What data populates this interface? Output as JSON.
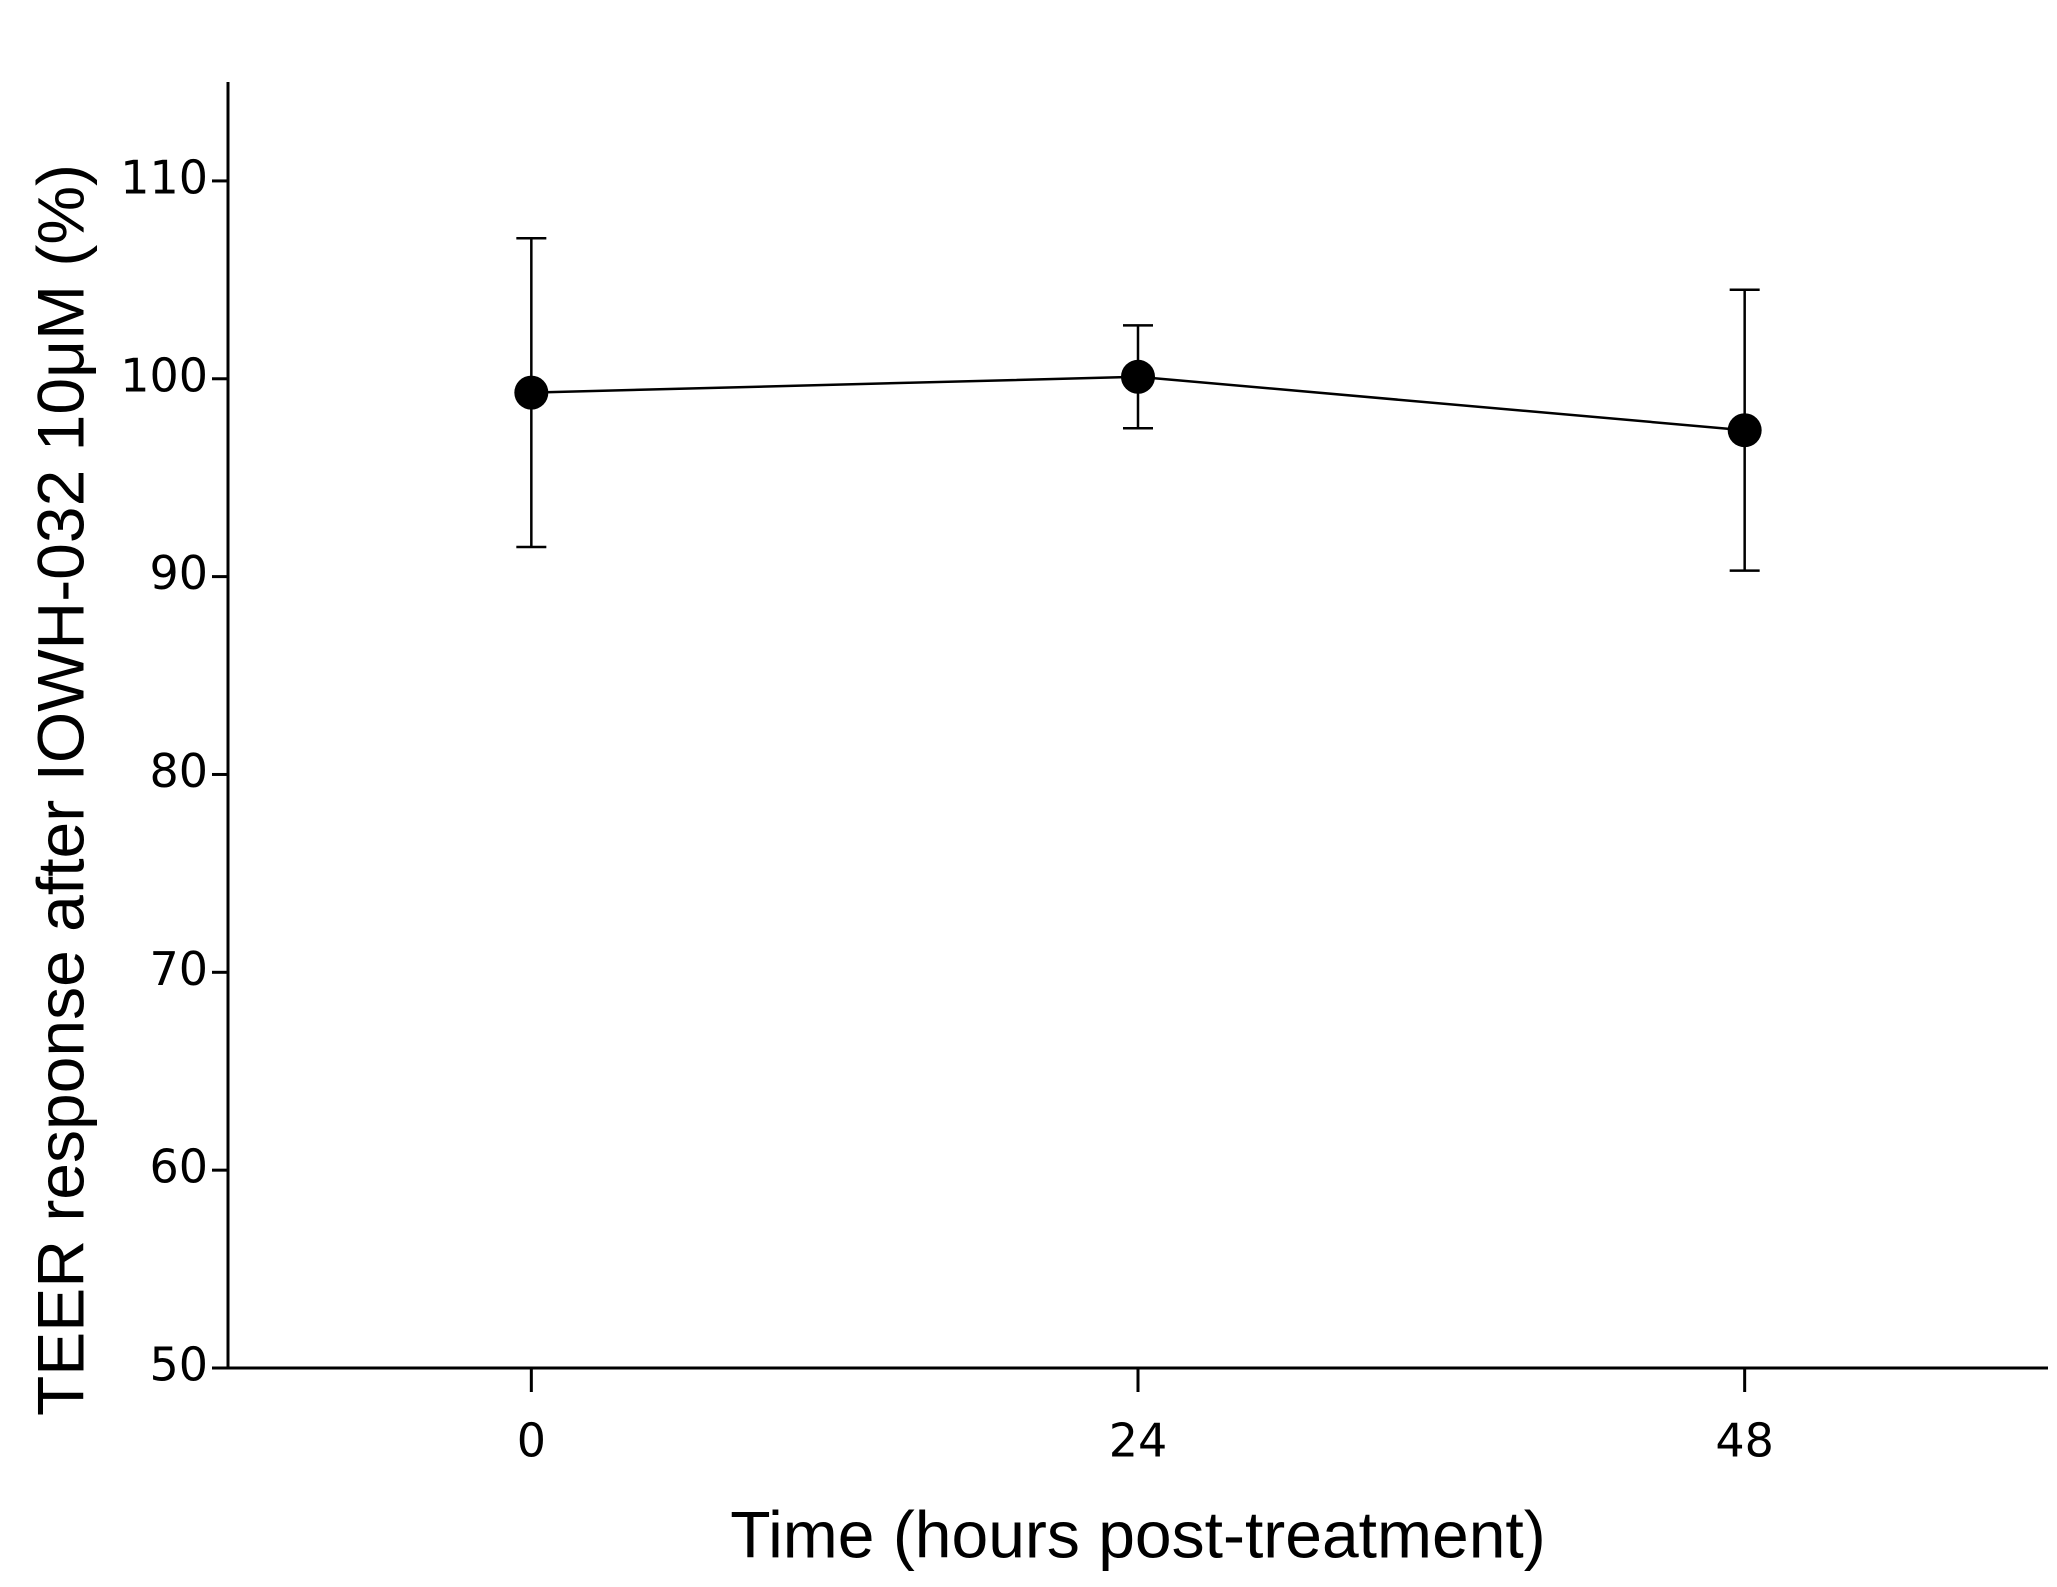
{
  "chart_data": {
    "type": "line",
    "x_label": "Time (hours post-treatment)",
    "y_label": "TEER response after IOWH-032 10μM (%)",
    "x": [
      0,
      24,
      48
    ],
    "series": [
      {
        "color": "#000000",
        "values": [
          99.3,
          100.1,
          97.4
        ],
        "errors": [
          7.8,
          2.6,
          7.1
        ]
      }
    ],
    "xlim": [
      -12,
      60
    ],
    "xticks": [
      0,
      24,
      48
    ],
    "ylim": [
      50,
      115
    ],
    "yticks": [
      50,
      60,
      70,
      80,
      90,
      100,
      110
    ],
    "grid": false
  }
}
